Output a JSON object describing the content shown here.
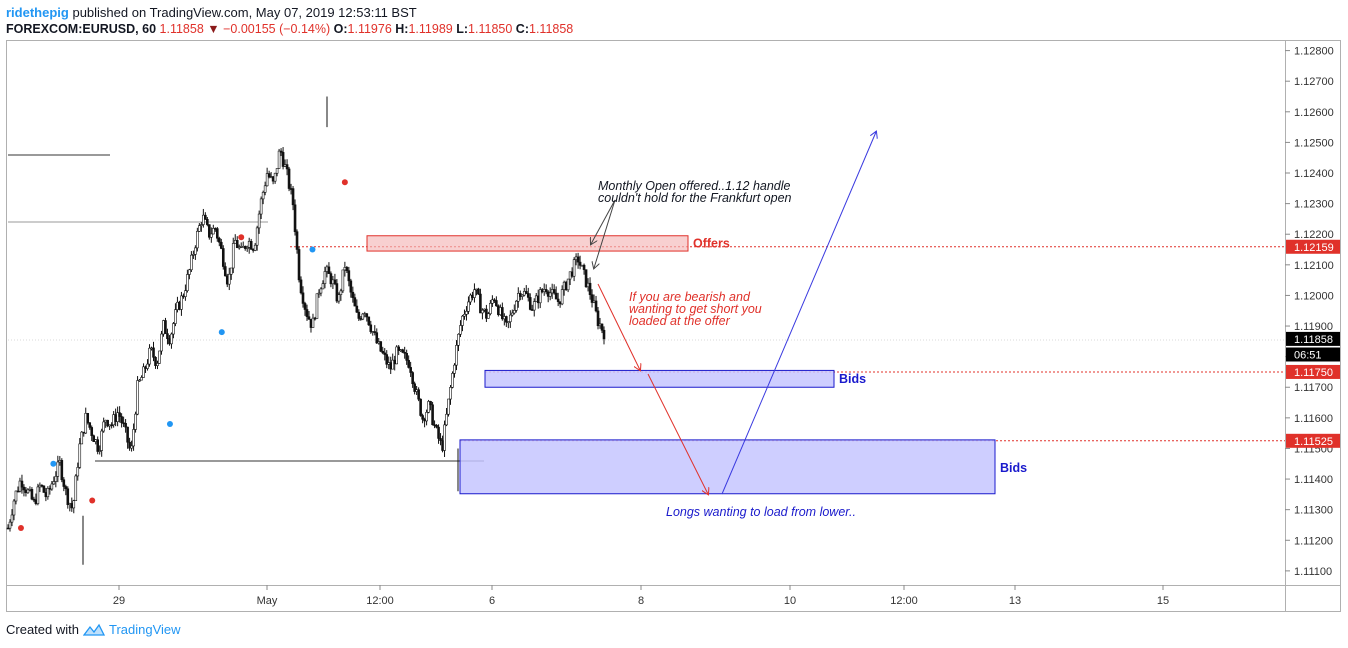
{
  "header": {
    "author": "ridethepig",
    "published_text": "published on TradingView.com, May 07, 2019 12:53:11 BST",
    "symbol": "FOREXCOM:EURUSD, 60",
    "last": "1.11858",
    "change": "−0.00155 (−0.14%)",
    "o_label": "O:",
    "o_value": "1.11976",
    "h_label": "H:",
    "h_value": "1.11989",
    "l_label": "L:",
    "l_value": "1.11850",
    "c_label": "C:",
    "c_value": "1.11858"
  },
  "footer": {
    "created_with": "Created with",
    "brand": "TradingView"
  },
  "colors": {
    "red": "#e0312a",
    "blue": "#1a1acc",
    "zone_red": "#f5b7b7",
    "zone_blue": "#c5c5ff",
    "grid": "#e6e6e6"
  },
  "chart_data": {
    "type": "candlestick",
    "symbol": "EURUSD",
    "timeframe": "60",
    "ylim": [
      1.1108,
      1.12815
    ],
    "y_ticks": [
      "1.12800",
      "1.12700",
      "1.12600",
      "1.12500",
      "1.12400",
      "1.12300",
      "1.12200",
      "1.12100",
      "1.12000",
      "1.11900",
      "1.11800",
      "1.11700",
      "1.11600",
      "1.11500",
      "1.11400",
      "1.11300",
      "1.11200",
      "1.11100"
    ],
    "x_ticks": [
      "29",
      "May",
      "12:00",
      "6",
      "8",
      "10",
      "12:00",
      "13",
      "15"
    ],
    "price_labels": [
      {
        "text": "1.12159",
        "value": 1.12159,
        "style": "red"
      },
      {
        "text": "1.11858",
        "value": 1.11858,
        "style": "black"
      },
      {
        "text": "06:51",
        "value": 1.11807,
        "style": "black"
      },
      {
        "text": "1.11750",
        "value": 1.1175,
        "style": "red"
      },
      {
        "text": "1.11525",
        "value": 1.11525,
        "style": "red"
      }
    ],
    "zones": [
      {
        "label": "Offers",
        "top": 1.12195,
        "bottom": 1.12145,
        "color": "red"
      },
      {
        "label": "Bids",
        "top": 1.11755,
        "bottom": 1.117,
        "color": "blue"
      },
      {
        "label": "Bids",
        "top": 1.11528,
        "bottom": 1.11352,
        "color": "blue"
      }
    ],
    "annotations": [
      {
        "text": "Monthly Open offered..1.12 handle",
        "style": "black"
      },
      {
        "text": "couldn't hold for the Frankfurt open",
        "style": "black"
      },
      {
        "text": "If you are bearish and",
        "style": "red"
      },
      {
        "text": "wanting to get short you",
        "style": "red"
      },
      {
        "text": "loaded at the offer",
        "style": "red"
      },
      {
        "text": "Longs wanting to load from lower..",
        "style": "blue"
      }
    ],
    "path_close": [
      1.1124,
      1.1134,
      1.114,
      1.1136,
      1.1132,
      1.1138,
      1.1134,
      1.114,
      1.1145,
      1.1135,
      1.113,
      1.115,
      1.116,
      1.1155,
      1.115,
      1.116,
      1.1158,
      1.1162,
      1.1156,
      1.1148,
      1.117,
      1.1175,
      1.1182,
      1.1178,
      1.119,
      1.1186,
      1.1195,
      1.12,
      1.1208,
      1.1218,
      1.1226,
      1.122,
      1.1222,
      1.1214,
      1.1204,
      1.1218,
      1.1214,
      1.1218,
      1.1216,
      1.123,
      1.124,
      1.1236,
      1.1248,
      1.124,
      1.123,
      1.1205,
      1.1195,
      1.119,
      1.1202,
      1.1208,
      1.1205,
      1.1198,
      1.121,
      1.12,
      1.1192,
      1.1196,
      1.119,
      1.1184,
      1.118,
      1.1176,
      1.1181,
      1.118,
      1.1178,
      1.1168,
      1.116,
      1.1164,
      1.1156,
      1.115,
      1.1165,
      1.118,
      1.1192,
      1.1198,
      1.1202,
      1.1196,
      1.1193,
      1.12,
      1.1194,
      1.1189,
      1.1196,
      1.1202,
      1.12,
      1.1196,
      1.12,
      1.1203,
      1.12,
      1.1198,
      1.1203,
      1.1208,
      1.1212,
      1.1206,
      1.12,
      1.1192,
      1.1188
    ],
    "markers": [
      {
        "date_index": 2,
        "value": 1.1124,
        "color": "red"
      },
      {
        "date_index": 13,
        "value": 1.1133,
        "color": "red"
      },
      {
        "date_index": 7,
        "value": 1.1145,
        "color": "blue"
      },
      {
        "date_index": 25,
        "value": 1.1158,
        "color": "blue"
      },
      {
        "date_index": 33,
        "value": 1.1188,
        "color": "blue"
      },
      {
        "date_index": 36,
        "value": 1.1219,
        "color": "red"
      },
      {
        "date_index": 47,
        "value": 1.1215,
        "color": "blue"
      },
      {
        "date_index": 52,
        "value": 1.1237,
        "color": "red"
      }
    ]
  }
}
